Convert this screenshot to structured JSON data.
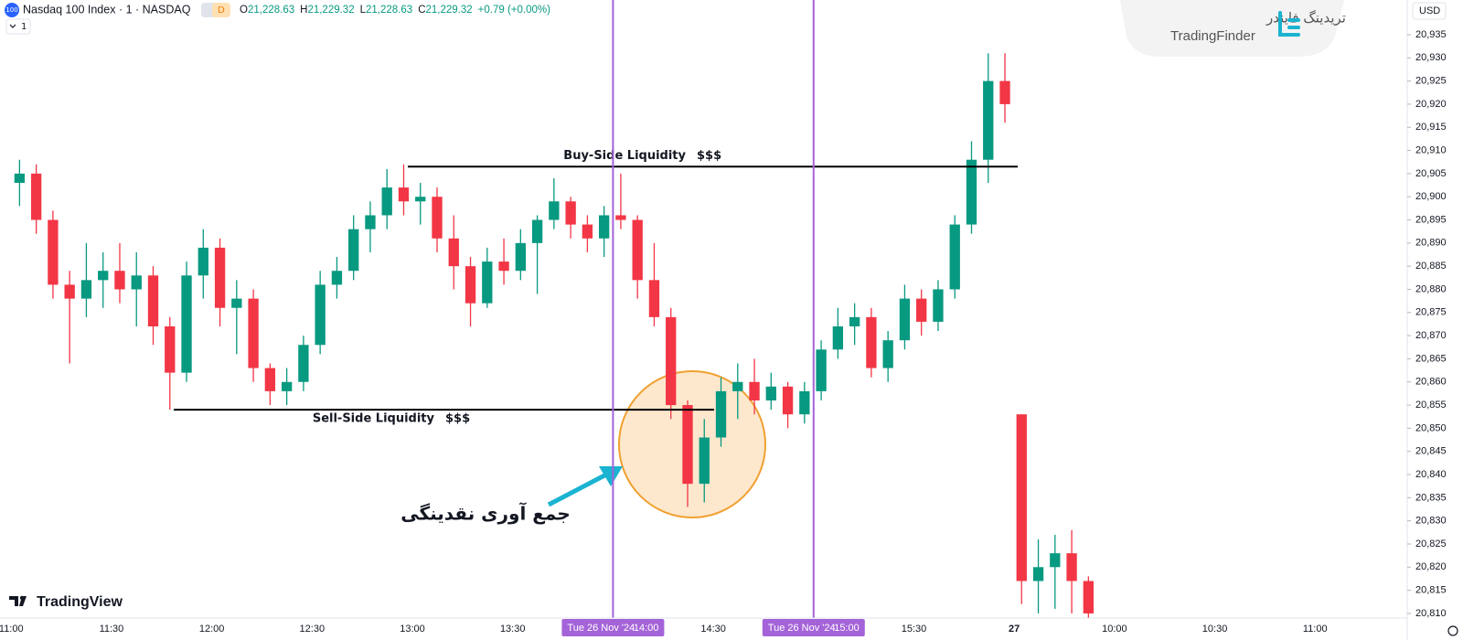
{
  "chart_data": {
    "type": "candlestick",
    "title": "Nasdaq 100 Index · 1 · NASDAQ",
    "symbol_icon": "100",
    "badge": "D",
    "ohlc_readout": [
      {
        "key": "O",
        "value": "21,228.63"
      },
      {
        "key": "H",
        "value": "21,229.32"
      },
      {
        "key": "L",
        "value": "21,228.63"
      },
      {
        "key": "C",
        "value": "21,229.32"
      }
    ],
    "change": "+0.79 (+0.00%)",
    "interval_button": "1",
    "currency": "USD",
    "open": [
      20903,
      20905,
      20895,
      20881,
      20878,
      20882,
      20884,
      20880,
      20883,
      20872,
      20862,
      20883,
      20889,
      20876,
      20878,
      20863,
      20858,
      20860,
      20868,
      20881,
      20884,
      20893,
      20896,
      20902,
      20899,
      20900,
      20891,
      20885,
      20877,
      20886,
      20884,
      20890,
      20895,
      20899,
      20894,
      20891,
      20896,
      20895,
      20882,
      20874,
      20855,
      20838,
      20848,
      20858,
      20860,
      20856,
      20859,
      20853,
      20858,
      20867,
      20872,
      20874,
      20863,
      20869,
      20878,
      20873,
      20880,
      20894,
      20908,
      20925,
      20853,
      20817,
      20820,
      20823,
      20817
    ],
    "high": [
      20908,
      20907,
      20897,
      20884,
      20890,
      20888,
      20890,
      20888,
      20885,
      20874,
      20886,
      20893,
      20891,
      20882,
      20880,
      20864,
      20863,
      20870,
      20884,
      20887,
      20896,
      20899,
      20906,
      20907,
      20903,
      20902,
      20896,
      20887,
      20889,
      20891,
      20893,
      20896,
      20904,
      20900,
      20896,
      20898,
      20905,
      20896,
      20890,
      20876,
      20856,
      20852,
      20861,
      20864,
      20865,
      20862,
      20860,
      20860,
      20869,
      20876,
      20877,
      20876,
      20871,
      20881,
      20880,
      20882,
      20896,
      20912,
      20931,
      20931,
      20853,
      20826,
      20827,
      20828,
      20818
    ],
    "low": [
      20898,
      20892,
      20878,
      20864,
      20874,
      20876,
      20877,
      20872,
      20868,
      20854,
      20860,
      20878,
      20872,
      20866,
      20860,
      20855,
      20855,
      20858,
      20866,
      20878,
      20882,
      20888,
      20893,
      20896,
      20894,
      20888,
      20880,
      20872,
      20876,
      20881,
      20882,
      20879,
      20893,
      20891,
      20888,
      20887,
      20893,
      20878,
      20872,
      20852,
      20833,
      20834,
      20846,
      20852,
      20853,
      20854,
      20850,
      20851,
      20856,
      20865,
      20868,
      20861,
      20860,
      20867,
      20870,
      20871,
      20878,
      20892,
      20903,
      20916,
      20812,
      20810,
      20811,
      20810,
      20809
    ],
    "close": [
      20905,
      20895,
      20881,
      20878,
      20882,
      20884,
      20880,
      20883,
      20872,
      20862,
      20883,
      20889,
      20876,
      20878,
      20863,
      20858,
      20860,
      20868,
      20881,
      20884,
      20893,
      20896,
      20902,
      20899,
      20900,
      20891,
      20885,
      20877,
      20886,
      20884,
      20890,
      20895,
      20899,
      20894,
      20891,
      20896,
      20895,
      20882,
      20874,
      20855,
      20838,
      20848,
      20858,
      20860,
      20856,
      20859,
      20853,
      20858,
      20867,
      20872,
      20874,
      20863,
      20869,
      20878,
      20873,
      20880,
      20894,
      20908,
      20925,
      20920,
      20817,
      20820,
      20823,
      20817,
      20810
    ],
    "up_color": "#089981",
    "down_color": "#f23645",
    "ylim": [
      20809,
      20942.5
    ],
    "yticks": [
      {
        "value": 20810,
        "label": "20,810"
      },
      {
        "value": 20815,
        "label": "20,815"
      },
      {
        "value": 20820,
        "label": "20,820"
      },
      {
        "value": 20825,
        "label": "20,825"
      },
      {
        "value": 20830,
        "label": "20,830"
      },
      {
        "value": 20835,
        "label": "20,835"
      },
      {
        "value": 20840,
        "label": "20,840"
      },
      {
        "value": 20845,
        "label": "20,845"
      },
      {
        "value": 20850,
        "label": "20,850"
      },
      {
        "value": 20855,
        "label": "20,855"
      },
      {
        "value": 20860,
        "label": "20,860"
      },
      {
        "value": 20865,
        "label": "20,865"
      },
      {
        "value": 20870,
        "label": "20,870"
      },
      {
        "value": 20875,
        "label": "20,875"
      },
      {
        "value": 20880,
        "label": "20,880"
      },
      {
        "value": 20885,
        "label": "20,885"
      },
      {
        "value": 20890,
        "label": "20,890"
      },
      {
        "value": 20895,
        "label": "20,895"
      },
      {
        "value": 20900,
        "label": "20,900"
      },
      {
        "value": 20905,
        "label": "20,905"
      },
      {
        "value": 20910,
        "label": "20,910"
      },
      {
        "value": 20915,
        "label": "20,915"
      },
      {
        "value": 20920,
        "label": "20,920"
      },
      {
        "value": 20925,
        "label": "20,925"
      },
      {
        "value": 20930,
        "label": "20,930"
      },
      {
        "value": 20935,
        "label": "20,935"
      }
    ],
    "xticks": [
      "11:00",
      "11:30",
      "12:00",
      "12:30",
      "13:00",
      "13:30",
      null,
      "14:30",
      null,
      "15:30",
      "27",
      "10:00",
      "10:30",
      "11:00"
    ],
    "grid": false,
    "time_markers": [
      {
        "date": "Tue 26 Nov '24",
        "time": "14:00"
      },
      {
        "date": "Tue 26 Nov '24",
        "time": "15:00"
      }
    ],
    "marker_color": "#a463d8",
    "levels": [
      {
        "label": "Buy-Side Liquidity",
        "tag": "$$$",
        "value": 20906.5
      },
      {
        "label": "Sell-Side Liquidity",
        "tag": "$$$",
        "value": 20854
      }
    ],
    "annotation": "جمع آوری نقدینگی"
  },
  "branding": {
    "tradingview": "TradingView",
    "watermark_en": "TradingFinder",
    "watermark_fa": "تریدینگ فایندر"
  }
}
